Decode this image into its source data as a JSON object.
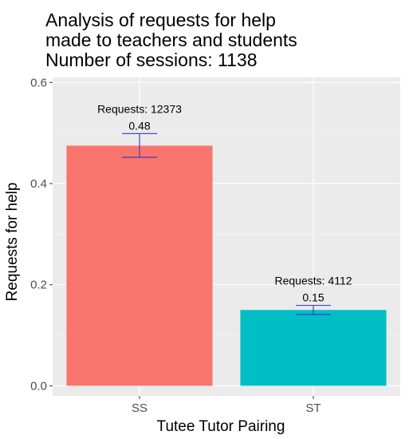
{
  "chart_data": {
    "type": "bar",
    "title_lines": [
      "Analysis of requests for help",
      "made to teachers and students",
      "Number of sessions: 1138"
    ],
    "xlabel": "Tutee Tutor Pairing",
    "ylabel": "Requests for help",
    "categories": [
      "SS",
      "ST"
    ],
    "values": [
      0.475,
      0.15
    ],
    "value_labels": [
      "0.48",
      "0.15"
    ],
    "request_labels": [
      "Requests:  12373",
      "Requests:  4112"
    ],
    "error_bars": [
      [
        0.452,
        0.499
      ],
      [
        0.141,
        0.159
      ]
    ],
    "ylim": [
      -0.02,
      0.61
    ],
    "yticks": [
      0.0,
      0.2,
      0.4,
      0.6
    ],
    "ytick_labels": [
      "0.0",
      "0.2",
      "0.4",
      "0.6"
    ],
    "grid": true,
    "legend": "none",
    "colors": {
      "bars": [
        "#F8766D",
        "#00BFC4"
      ],
      "error_bar": "#3333CC",
      "panel_background": "#EBEBEB",
      "grid_major": "#FFFFFF",
      "grid_minor": "#F5F5F5"
    }
  }
}
